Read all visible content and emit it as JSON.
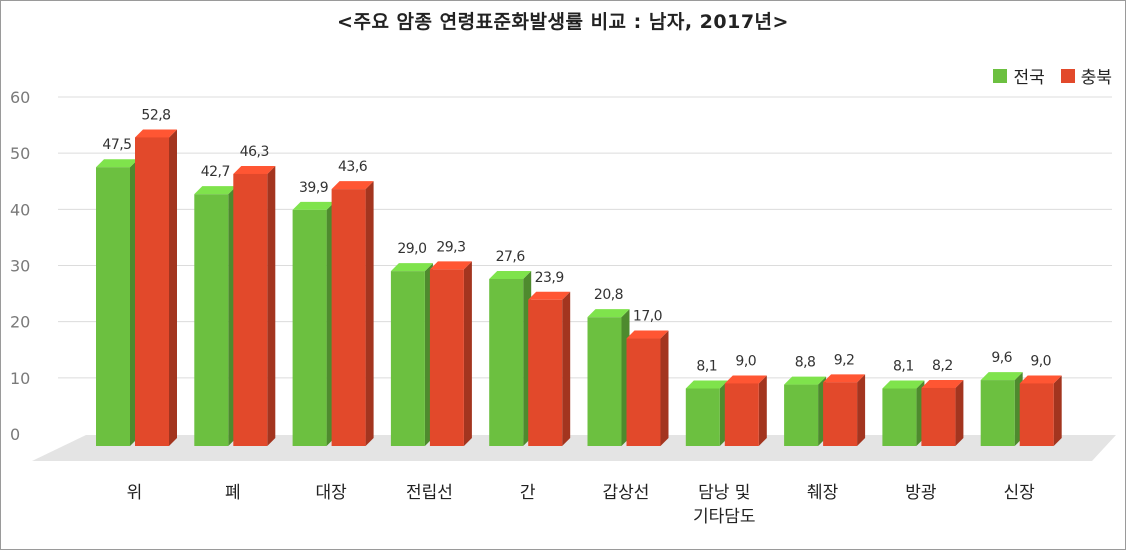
{
  "title": "<주요 암종 연령표준화발생률 비교 : 남자, 2017년>",
  "chart_data": {
    "type": "bar",
    "title": "<주요 암종 연령표준화발생률 비교 : 남자, 2017년>",
    "categories": [
      "위",
      "폐",
      "대장",
      "전립선",
      "간",
      "갑상선",
      "담낭 및\n기타담도",
      "췌장",
      "방광",
      "신장"
    ],
    "series": [
      {
        "name": "전국",
        "values": [
          47.5,
          42.7,
          39.9,
          29.0,
          27.6,
          20.8,
          8.1,
          8.8,
          8.1,
          9.6
        ],
        "labels": [
          "47,5",
          "42,7",
          "39,9",
          "29,0",
          "27,6",
          "20,8",
          "8,1",
          "8,8",
          "8,1",
          "9,6"
        ],
        "color": "#6cc040"
      },
      {
        "name": "충북",
        "values": [
          52.8,
          46.3,
          43.6,
          29.3,
          23.9,
          17.0,
          9.0,
          9.2,
          8.2,
          9.0
        ],
        "labels": [
          "52,8",
          "46,3",
          "43,6",
          "29,3",
          "23,9",
          "17,0",
          "9,0",
          "9,2",
          "8,2",
          "9,0"
        ],
        "color": "#e2492b"
      }
    ],
    "y_ticks": [
      "0",
      "10",
      "20",
      "30",
      "40",
      "50",
      "60"
    ],
    "ylim": [
      0,
      60
    ],
    "grid": true,
    "legend": "top-right",
    "xlabel": "",
    "ylabel": ""
  }
}
